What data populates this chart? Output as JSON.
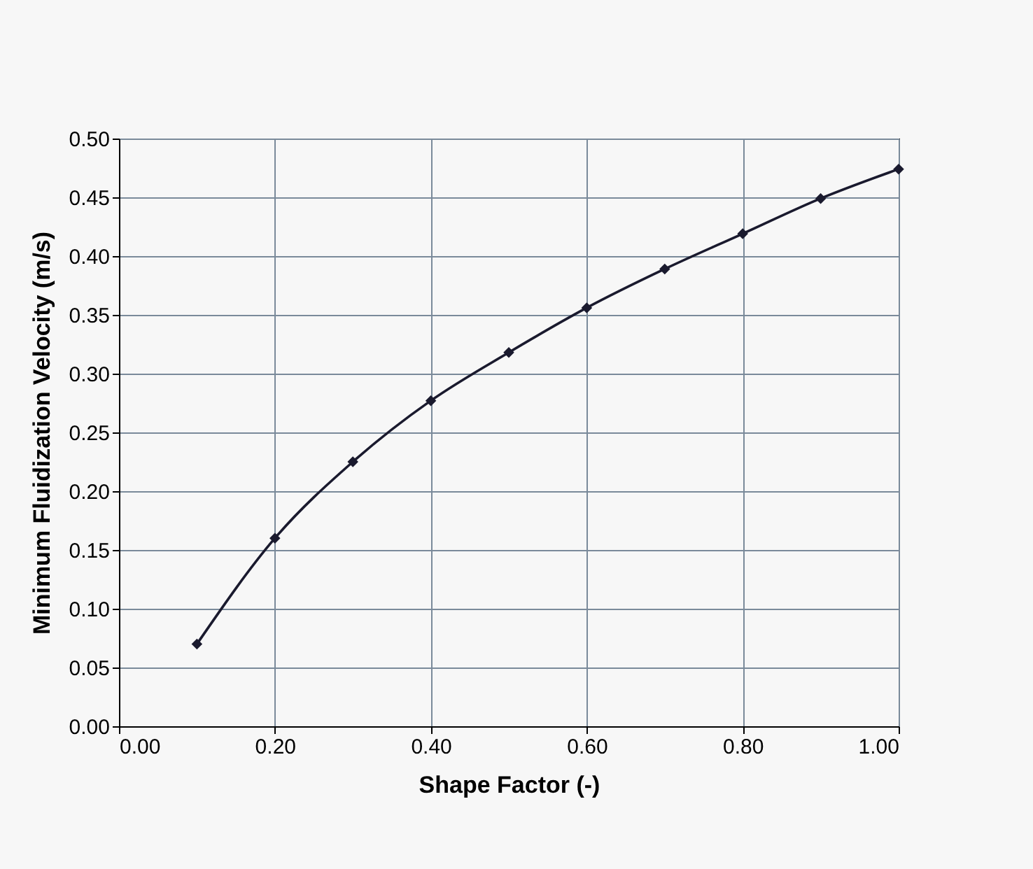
{
  "chart_data": {
    "type": "line",
    "xlabel": "Shape Factor (-)",
    "ylabel": "Minimum Fluidization Velocity (m/s)",
    "x": [
      0.1,
      0.2,
      0.3,
      0.4,
      0.5,
      0.6,
      0.7,
      0.8,
      0.9,
      1.0
    ],
    "series": [
      {
        "color": "#1a1a2e",
        "values": [
          0.07,
          0.16,
          0.225,
          0.277,
          0.318,
          0.356,
          0.389,
          0.419,
          0.449,
          0.474
        ]
      }
    ],
    "xlim": [
      0,
      1
    ],
    "xticks": [
      {
        "value": 0,
        "label": "0.00"
      },
      {
        "value": 0.2,
        "label": "0.20"
      },
      {
        "value": 0.4,
        "label": "0.40"
      },
      {
        "value": 0.6,
        "label": "0.60"
      },
      {
        "value": 0.8,
        "label": "0.80"
      },
      {
        "value": 1,
        "label": "1.00"
      }
    ],
    "ylim": [
      0,
      0.5
    ],
    "yticks": [
      {
        "value": 0,
        "label": "0.00"
      },
      {
        "value": 0.05,
        "label": "0.05"
      },
      {
        "value": 0.1,
        "label": "0.10"
      },
      {
        "value": 0.15,
        "label": "0.15"
      },
      {
        "value": 0.2,
        "label": "0.20"
      },
      {
        "value": 0.25,
        "label": "0.25"
      },
      {
        "value": 0.3,
        "label": "0.30"
      },
      {
        "value": 0.35,
        "label": "0.35"
      },
      {
        "value": 0.4,
        "label": "0.40"
      },
      {
        "value": 0.45,
        "label": "0.45"
      },
      {
        "value": 0.5,
        "label": "0.50"
      }
    ],
    "grid": true,
    "marker": "diamond",
    "line_style": "solid",
    "legend": false
  }
}
